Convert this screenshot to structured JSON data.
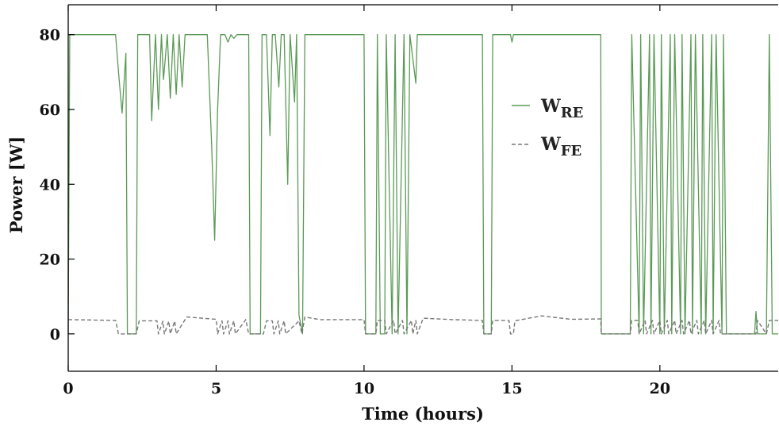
{
  "chart_data": {
    "type": "line",
    "xlabel": "Time (hours)",
    "ylabel": "Power [W]",
    "xlim": [
      0,
      24
    ],
    "ylim": [
      -10,
      88
    ],
    "xticks": [
      0,
      5,
      10,
      15,
      20
    ],
    "yticks": [
      0,
      20,
      40,
      60,
      80
    ],
    "grid": false,
    "legend_position": "top-right",
    "colors": {
      "W_RE": "#5a9a55",
      "W_FE": "#777777",
      "axis": "#000000"
    },
    "series": [
      {
        "name": "W_RE",
        "name_main": "W",
        "name_sub": "RE",
        "style": "solid",
        "x": [
          0.0,
          0.05,
          0.1,
          1.6,
          1.7,
          1.82,
          1.95,
          2.0,
          2.02,
          2.3,
          2.35,
          2.4,
          2.75,
          2.82,
          2.95,
          3.05,
          3.15,
          3.22,
          3.35,
          3.45,
          3.55,
          3.65,
          3.75,
          3.85,
          3.95,
          4.7,
          4.85,
          4.95,
          5.05,
          5.15,
          5.3,
          5.4,
          5.5,
          5.6,
          5.7,
          6.1,
          6.15,
          6.5,
          6.55,
          6.7,
          6.82,
          6.9,
          7.0,
          7.12,
          7.2,
          7.3,
          7.42,
          7.5,
          7.65,
          7.72,
          7.8,
          7.92,
          8.0,
          10.0,
          10.05,
          10.4,
          10.45,
          10.55,
          10.7,
          10.75,
          10.95,
          11.05,
          11.15,
          11.35,
          11.45,
          11.55,
          11.75,
          11.8,
          11.85,
          11.95,
          14.0,
          14.05,
          14.3,
          14.35,
          14.95,
          15.0,
          15.05,
          18.0,
          18.02,
          19.0,
          19.05,
          19.3,
          19.35,
          19.45,
          19.65,
          19.7,
          19.8,
          20.0,
          20.05,
          20.15,
          20.35,
          20.4,
          20.5,
          20.7,
          20.75,
          20.85,
          21.05,
          21.1,
          21.2,
          21.4,
          21.45,
          21.55,
          21.75,
          21.8,
          21.9,
          22.1,
          22.15,
          22.25,
          22.3,
          22.35,
          23.2,
          23.25,
          23.3,
          23.6,
          23.7,
          23.8,
          24.0
        ],
        "y": [
          0,
          80,
          80,
          80,
          70,
          59,
          75,
          0,
          0,
          0,
          80,
          80,
          80,
          57,
          80,
          60,
          80,
          68,
          80,
          63,
          80,
          64,
          80,
          66,
          80,
          80,
          50,
          25,
          60,
          80,
          80,
          78,
          80,
          79,
          80,
          80,
          0,
          0,
          80,
          80,
          53,
          80,
          80,
          66,
          80,
          80,
          40,
          80,
          62,
          80,
          5,
          0,
          80,
          80,
          0,
          0,
          80,
          0,
          0,
          80,
          0,
          80,
          0,
          80,
          0,
          80,
          67,
          80,
          80,
          80,
          80,
          0,
          0,
          80,
          80,
          78,
          80,
          80,
          0,
          0,
          80,
          0,
          80,
          0,
          80,
          0,
          80,
          0,
          80,
          0,
          80,
          0,
          80,
          0,
          80,
          0,
          80,
          0,
          80,
          0,
          80,
          0,
          80,
          0,
          80,
          0,
          80,
          0,
          0,
          0,
          0,
          6,
          0,
          0,
          80,
          0,
          0
        ]
      },
      {
        "name": "W_FE",
        "name_main": "W",
        "name_sub": "FE",
        "style": "dashed",
        "x": [
          0.0,
          1.6,
          1.7,
          2.3,
          2.4,
          3.0,
          3.05,
          3.2,
          3.25,
          3.4,
          3.45,
          3.6,
          3.65,
          3.95,
          4.0,
          5.0,
          5.05,
          5.2,
          5.25,
          5.4,
          5.45,
          5.6,
          5.65,
          6.0,
          6.1,
          6.6,
          6.7,
          6.9,
          6.95,
          7.1,
          7.15,
          7.3,
          7.35,
          7.8,
          7.9,
          8.0,
          8.5,
          10.0,
          10.05,
          10.4,
          10.45,
          10.7,
          10.75,
          11.0,
          11.05,
          11.3,
          11.35,
          11.6,
          11.65,
          11.75,
          11.8,
          12.0,
          13.0,
          14.0,
          14.05,
          14.3,
          14.35,
          14.9,
          14.95,
          15.05,
          15.1,
          16.0,
          17.0,
          18.0,
          18.02,
          19.0,
          19.05,
          19.25,
          19.3,
          19.5,
          19.55,
          19.75,
          19.8,
          20.0,
          20.05,
          20.25,
          20.3,
          20.5,
          20.55,
          20.75,
          20.8,
          21.0,
          21.05,
          21.25,
          21.3,
          21.5,
          21.55,
          21.75,
          21.8,
          22.0,
          22.05,
          22.3,
          22.35,
          23.25,
          23.3,
          23.6,
          23.7,
          24.0
        ],
        "y": [
          3.8,
          3.6,
          0,
          0,
          3.5,
          3.5,
          0,
          3.4,
          0,
          3.4,
          0,
          3.4,
          0,
          3.8,
          4.5,
          3.9,
          0,
          3.5,
          0,
          3.5,
          0,
          3.5,
          0,
          3.8,
          0,
          0,
          3.5,
          3.5,
          0,
          3.5,
          0,
          3.5,
          0,
          3.5,
          0,
          4.5,
          3.8,
          3.8,
          0,
          0,
          3.6,
          3.6,
          0,
          3.6,
          0,
          3.6,
          0,
          3.6,
          0,
          3.6,
          0,
          4.2,
          3.8,
          3.6,
          0,
          0,
          3.6,
          3.6,
          0,
          0,
          3.5,
          4.8,
          3.9,
          4.0,
          0,
          0,
          3.6,
          3.6,
          0,
          3.6,
          0,
          3.6,
          0,
          3.6,
          0,
          3.6,
          0,
          3.6,
          0,
          3.6,
          0,
          3.6,
          0,
          3.6,
          0,
          3.6,
          0,
          3.6,
          0,
          3.6,
          0,
          0,
          0,
          0,
          3.6,
          0,
          3.6,
          3.6
        ]
      }
    ]
  }
}
